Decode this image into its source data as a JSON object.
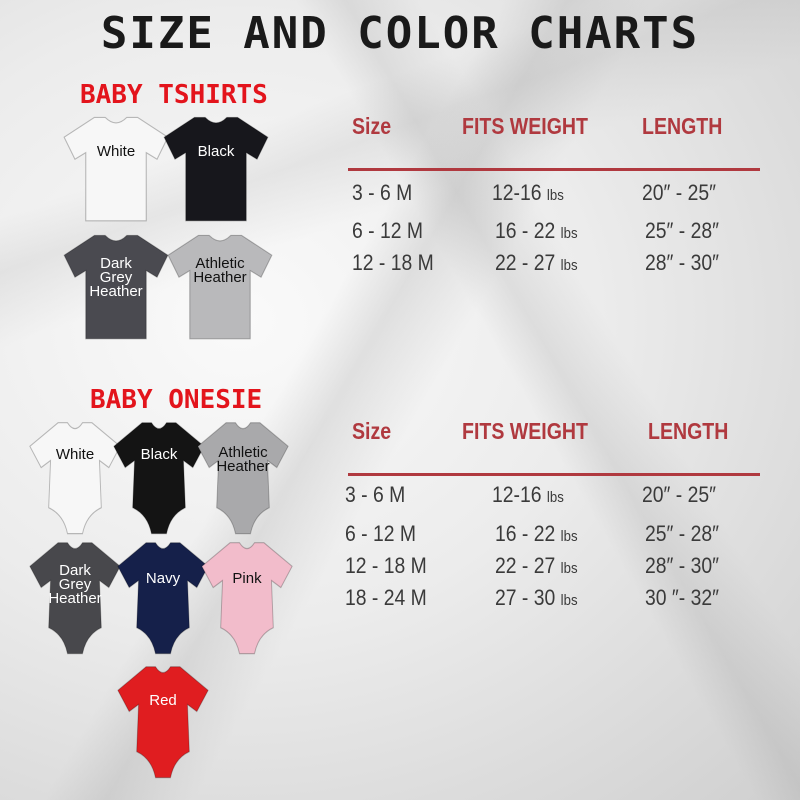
{
  "title": "SIZE AND COLOR CHARTS",
  "tshirts": {
    "heading": "BABY TSHIRTS",
    "items": [
      {
        "label": "White",
        "color": "#f7f7f7",
        "text": "#111111"
      },
      {
        "label": "Black",
        "color": "#17171c",
        "text": "#ffffff"
      },
      {
        "label": "Dark\nGrey\nHeather",
        "color": "#4a4a50",
        "text": "#ffffff"
      },
      {
        "label": "Athletic\nHeather",
        "color": "#b9b9bb",
        "text": "#111111"
      }
    ]
  },
  "onesies": {
    "heading": "BABY ONESIE",
    "items": [
      {
        "label": "White",
        "color": "#f7f7f7",
        "text": "#111111"
      },
      {
        "label": "Black",
        "color": "#141414",
        "text": "#ffffff"
      },
      {
        "label": "Athletic\nHeather",
        "color": "#a9a9ab",
        "text": "#111111"
      },
      {
        "label": "Dark\nGrey\nHeather",
        "color": "#48484c",
        "text": "#ffffff"
      },
      {
        "label": "Navy",
        "color": "#15204a",
        "text": "#ffffff"
      },
      {
        "label": "Pink",
        "color": "#f2bccb",
        "text": "#111111"
      },
      {
        "label": "Red",
        "color": "#e01d20",
        "text": "#ffffff"
      }
    ]
  },
  "tables": [
    {
      "headers": [
        "Size",
        "FITS WEIGHT",
        "LENGTH"
      ],
      "unit": "lbs",
      "rows": [
        [
          "3 - 6 M",
          "12-16",
          "20″ - 25″"
        ],
        [
          "6 - 12 M",
          "16 - 22",
          "25″ - 28″"
        ],
        [
          "12 - 18 M",
          "22 - 27",
          "28″ - 30″"
        ]
      ]
    },
    {
      "headers": [
        "Size",
        "FITS WEIGHT",
        "LENGTH"
      ],
      "unit": "lbs",
      "rows": [
        [
          "3 - 6 M",
          "12-16",
          "20″ - 25″"
        ],
        [
          "6 - 12 M",
          "16 - 22",
          "25″ - 28″"
        ],
        [
          "12 - 18 M",
          "22 - 27",
          "28″ - 30″"
        ],
        [
          "18 - 24 M",
          "27 - 30",
          "30 ″- 32″"
        ]
      ]
    }
  ],
  "colors": {
    "accent": "#b0393f",
    "heading_red": "#e3141c"
  }
}
